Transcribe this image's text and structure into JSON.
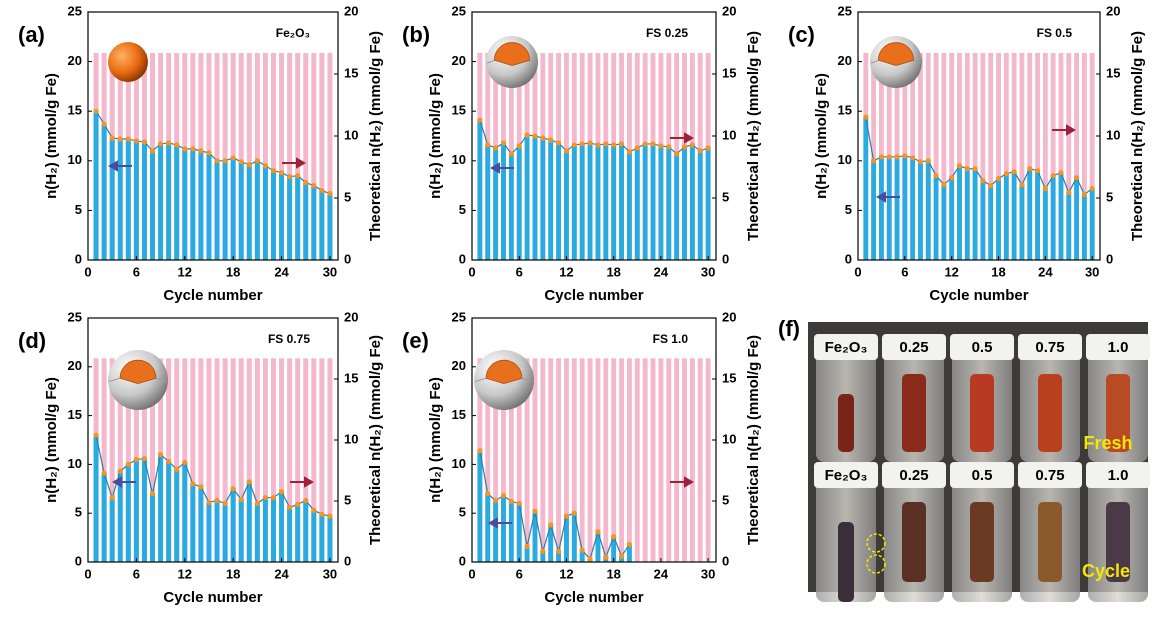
{
  "chart_data": [
    {
      "type": "bar",
      "panel_label": "(a)",
      "sample_label": "Fe₂O₃",
      "xlabel": "Cycle number",
      "ylabel": "n(H₂) (mmol/g Fe)",
      "y2label": "Theoretical n(H₂) (mmol/g Fe)",
      "x": [
        1,
        2,
        3,
        4,
        5,
        6,
        7,
        8,
        9,
        10,
        11,
        12,
        13,
        14,
        15,
        16,
        17,
        18,
        19,
        20,
        21,
        22,
        23,
        24,
        25,
        26,
        27,
        28,
        29,
        30
      ],
      "xlim": [
        0,
        31
      ],
      "xticks": [
        0,
        6,
        12,
        18,
        24,
        30
      ],
      "ylim": [
        0,
        25
      ],
      "yticks": [
        0,
        5,
        10,
        15,
        20,
        25
      ],
      "y2lim": [
        0,
        20
      ],
      "y2ticks": [
        0,
        5,
        10,
        15,
        20
      ],
      "series": [
        {
          "color": "#f4b8cc",
          "axis": "y2",
          "values": [
            16.7,
            16.7,
            16.7,
            16.7,
            16.7,
            16.7,
            16.7,
            16.7,
            16.7,
            16.7,
            16.7,
            16.7,
            16.7,
            16.7,
            16.7,
            16.7,
            16.7,
            16.7,
            16.7,
            16.7,
            16.7,
            16.7,
            16.7,
            16.7,
            16.7,
            16.7,
            16.7,
            16.7,
            16.7,
            16.7
          ]
        },
        {
          "color": "#29abe2",
          "line_color": "#2b7fa6",
          "marker_color": "#f7931e",
          "values": [
            15,
            13.7,
            12.3,
            12.2,
            12.2,
            12.0,
            11.9,
            11.0,
            11.7,
            11.8,
            11.6,
            11.2,
            11.2,
            11.0,
            10.8,
            10.0,
            10.0,
            10.3,
            9.9,
            9.6,
            10.0,
            9.5,
            9.0,
            8.8,
            8.4,
            8.5,
            7.8,
            7.5,
            7.0,
            6.7
          ]
        }
      ]
    },
    {
      "type": "bar",
      "panel_label": "(b)",
      "sample_label": "FS 0.25",
      "xlabel": "Cycle number",
      "ylabel": "n(H₂) (mmol/g Fe)",
      "y2label": "Theoretical n(H₂) (mmol/g Fe)",
      "x": [
        1,
        2,
        3,
        4,
        5,
        6,
        7,
        8,
        9,
        10,
        11,
        12,
        13,
        14,
        15,
        16,
        17,
        18,
        19,
        20,
        21,
        22,
        23,
        24,
        25,
        26,
        27,
        28,
        29,
        30
      ],
      "xlim": [
        0,
        31
      ],
      "xticks": [
        0,
        6,
        12,
        18,
        24,
        30
      ],
      "ylim": [
        0,
        25
      ],
      "yticks": [
        0,
        5,
        10,
        15,
        20,
        25
      ],
      "y2lim": [
        0,
        20
      ],
      "y2ticks": [
        0,
        5,
        10,
        15,
        20
      ],
      "series": [
        {
          "color": "#f4b8cc",
          "axis": "y2",
          "values": [
            16.7,
            16.7,
            16.7,
            16.7,
            16.7,
            16.7,
            16.7,
            16.7,
            16.7,
            16.7,
            16.7,
            16.7,
            16.7,
            16.7,
            16.7,
            16.7,
            16.7,
            16.7,
            16.7,
            16.7,
            16.7,
            16.7,
            16.7,
            16.7,
            16.7,
            16.7,
            16.7,
            16.7,
            16.7,
            16.7
          ]
        },
        {
          "color": "#29abe2",
          "line_color": "#2b7fa6",
          "marker_color": "#f7931e",
          "values": [
            14.1,
            11.6,
            11.3,
            11.8,
            10.7,
            11.5,
            12.6,
            12.5,
            12.3,
            12.1,
            11.8,
            11.0,
            11.6,
            11.7,
            11.8,
            11.6,
            11.7,
            11.6,
            11.7,
            10.9,
            11.3,
            11.7,
            11.7,
            11.5,
            11.4,
            10.7,
            11.4,
            11.6,
            11.0,
            11.3
          ]
        }
      ]
    },
    {
      "type": "bar",
      "panel_label": "(c)",
      "sample_label": "FS 0.5",
      "xlabel": "Cycle number",
      "ylabel": "n(H₂) (mmol/g Fe)",
      "y2label": "Theoretical n(H₂) (mmol/g Fe)",
      "x": [
        1,
        2,
        3,
        4,
        5,
        6,
        7,
        8,
        9,
        10,
        11,
        12,
        13,
        14,
        15,
        16,
        17,
        18,
        19,
        20,
        21,
        22,
        23,
        24,
        25,
        26,
        27,
        28,
        29,
        30
      ],
      "xlim": [
        0,
        31
      ],
      "xticks": [
        0,
        6,
        12,
        18,
        24,
        30
      ],
      "ylim": [
        0,
        25
      ],
      "yticks": [
        0,
        5,
        10,
        15,
        20,
        25
      ],
      "y2lim": [
        0,
        20
      ],
      "y2ticks": [
        0,
        5,
        10,
        15,
        20
      ],
      "series": [
        {
          "color": "#f4b8cc",
          "axis": "y2",
          "values": [
            16.7,
            16.7,
            16.7,
            16.7,
            16.7,
            16.7,
            16.7,
            16.7,
            16.7,
            16.7,
            16.7,
            16.7,
            16.7,
            16.7,
            16.7,
            16.7,
            16.7,
            16.7,
            16.7,
            16.7,
            16.7,
            16.7,
            16.7,
            16.7,
            16.7,
            16.7,
            16.7,
            16.7,
            16.7,
            16.7
          ]
        },
        {
          "color": "#29abe2",
          "line_color": "#2b7fa6",
          "marker_color": "#f7931e",
          "values": [
            14.4,
            10.0,
            10.4,
            10.4,
            10.4,
            10.5,
            10.3,
            9.9,
            10.0,
            8.5,
            7.6,
            8.3,
            9.5,
            9.2,
            9.2,
            8.0,
            7.5,
            8.2,
            8.7,
            8.9,
            7.6,
            9.2,
            9.0,
            7.2,
            8.5,
            8.8,
            6.8,
            8.3,
            6.6,
            7.2
          ]
        }
      ]
    },
    {
      "type": "bar",
      "panel_label": "(d)",
      "sample_label": "FS 0.75",
      "xlabel": "Cycle number",
      "ylabel": "n(H₂) (mmol/g Fe)",
      "y2label": "Theoretical n(H₂) (mmol/g Fe)",
      "x": [
        1,
        2,
        3,
        4,
        5,
        6,
        7,
        8,
        9,
        10,
        11,
        12,
        13,
        14,
        15,
        16,
        17,
        18,
        19,
        20,
        21,
        22,
        23,
        24,
        25,
        26,
        27,
        28,
        29,
        30
      ],
      "xlim": [
        0,
        31
      ],
      "xticks": [
        0,
        6,
        12,
        18,
        24,
        30
      ],
      "ylim": [
        0,
        25
      ],
      "yticks": [
        0,
        5,
        10,
        15,
        20,
        25
      ],
      "y2lim": [
        0,
        20
      ],
      "y2ticks": [
        0,
        5,
        10,
        15,
        20
      ],
      "series": [
        {
          "color": "#f4b8cc",
          "axis": "y2",
          "values": [
            16.7,
            16.7,
            16.7,
            16.7,
            16.7,
            16.7,
            16.7,
            16.7,
            16.7,
            16.7,
            16.7,
            16.7,
            16.7,
            16.7,
            16.7,
            16.7,
            16.7,
            16.7,
            16.7,
            16.7,
            16.7,
            16.7,
            16.7,
            16.7,
            16.7,
            16.7,
            16.7,
            16.7,
            16.7,
            16.7
          ]
        },
        {
          "color": "#29abe2",
          "line_color": "#2b7fa6",
          "marker_color": "#f7931e",
          "values": [
            13.0,
            9.1,
            6.6,
            9.3,
            10.0,
            10.5,
            10.6,
            7.0,
            11.0,
            10.3,
            9.5,
            10.2,
            8.0,
            7.7,
            6.1,
            6.3,
            6.0,
            7.5,
            6.4,
            8.2,
            6.0,
            6.6,
            6.6,
            7.2,
            5.6,
            5.9,
            6.3,
            5.3,
            4.9,
            4.7
          ]
        }
      ]
    },
    {
      "type": "bar",
      "panel_label": "(e)",
      "sample_label": "FS 1.0",
      "xlabel": "Cycle number",
      "ylabel": "n(H₂) (mmol/g Fe)",
      "y2label": "Theoretical n(H₂) (mmol/g Fe)",
      "x": [
        1,
        2,
        3,
        4,
        5,
        6,
        7,
        8,
        9,
        10,
        11,
        12,
        13,
        14,
        15,
        16,
        17,
        18,
        19,
        20,
        21,
        22,
        23,
        24,
        25,
        26,
        27,
        28,
        29,
        30
      ],
      "xlim": [
        0,
        31
      ],
      "xticks": [
        0,
        6,
        12,
        18,
        24,
        30
      ],
      "ylim": [
        0,
        25
      ],
      "yticks": [
        0,
        5,
        10,
        15,
        20,
        25
      ],
      "y2lim": [
        0,
        20
      ],
      "y2ticks": [
        0,
        5,
        10,
        15,
        20
      ],
      "series": [
        {
          "color": "#f4b8cc",
          "axis": "y2",
          "values": [
            16.7,
            16.7,
            16.7,
            16.7,
            16.7,
            16.7,
            16.7,
            16.7,
            16.7,
            16.7,
            16.7,
            16.7,
            16.7,
            16.7,
            16.7,
            16.7,
            16.7,
            16.7,
            16.7,
            16.7,
            16.7,
            16.7,
            16.7,
            16.7,
            16.7,
            16.7,
            16.7,
            16.7,
            16.7,
            16.7
          ]
        },
        {
          "color": "#29abe2",
          "line_color": "#2b7fa6",
          "marker_color": "#f7931e",
          "values": [
            11.4,
            7.0,
            6.3,
            6.8,
            6.2,
            6.0,
            1.6,
            5.2,
            1.1,
            3.8,
            1.1,
            4.7,
            5.0,
            1.2,
            0.3,
            3.1,
            0.5,
            2.6,
            0.6,
            1.8,
            null,
            null,
            null,
            null,
            null,
            null,
            null,
            null,
            null,
            null
          ]
        }
      ]
    }
  ],
  "photo": {
    "panel_label": "(f)",
    "top_labels": [
      "Fe₂O₃",
      "0.25",
      "0.5",
      "0.75",
      "1.0"
    ],
    "bottom_labels": [
      "Fe₂O₃",
      "0.25",
      "0.5",
      "0.75",
      "1.0"
    ],
    "fresh": "Fresh",
    "cycle": "Cycle"
  }
}
